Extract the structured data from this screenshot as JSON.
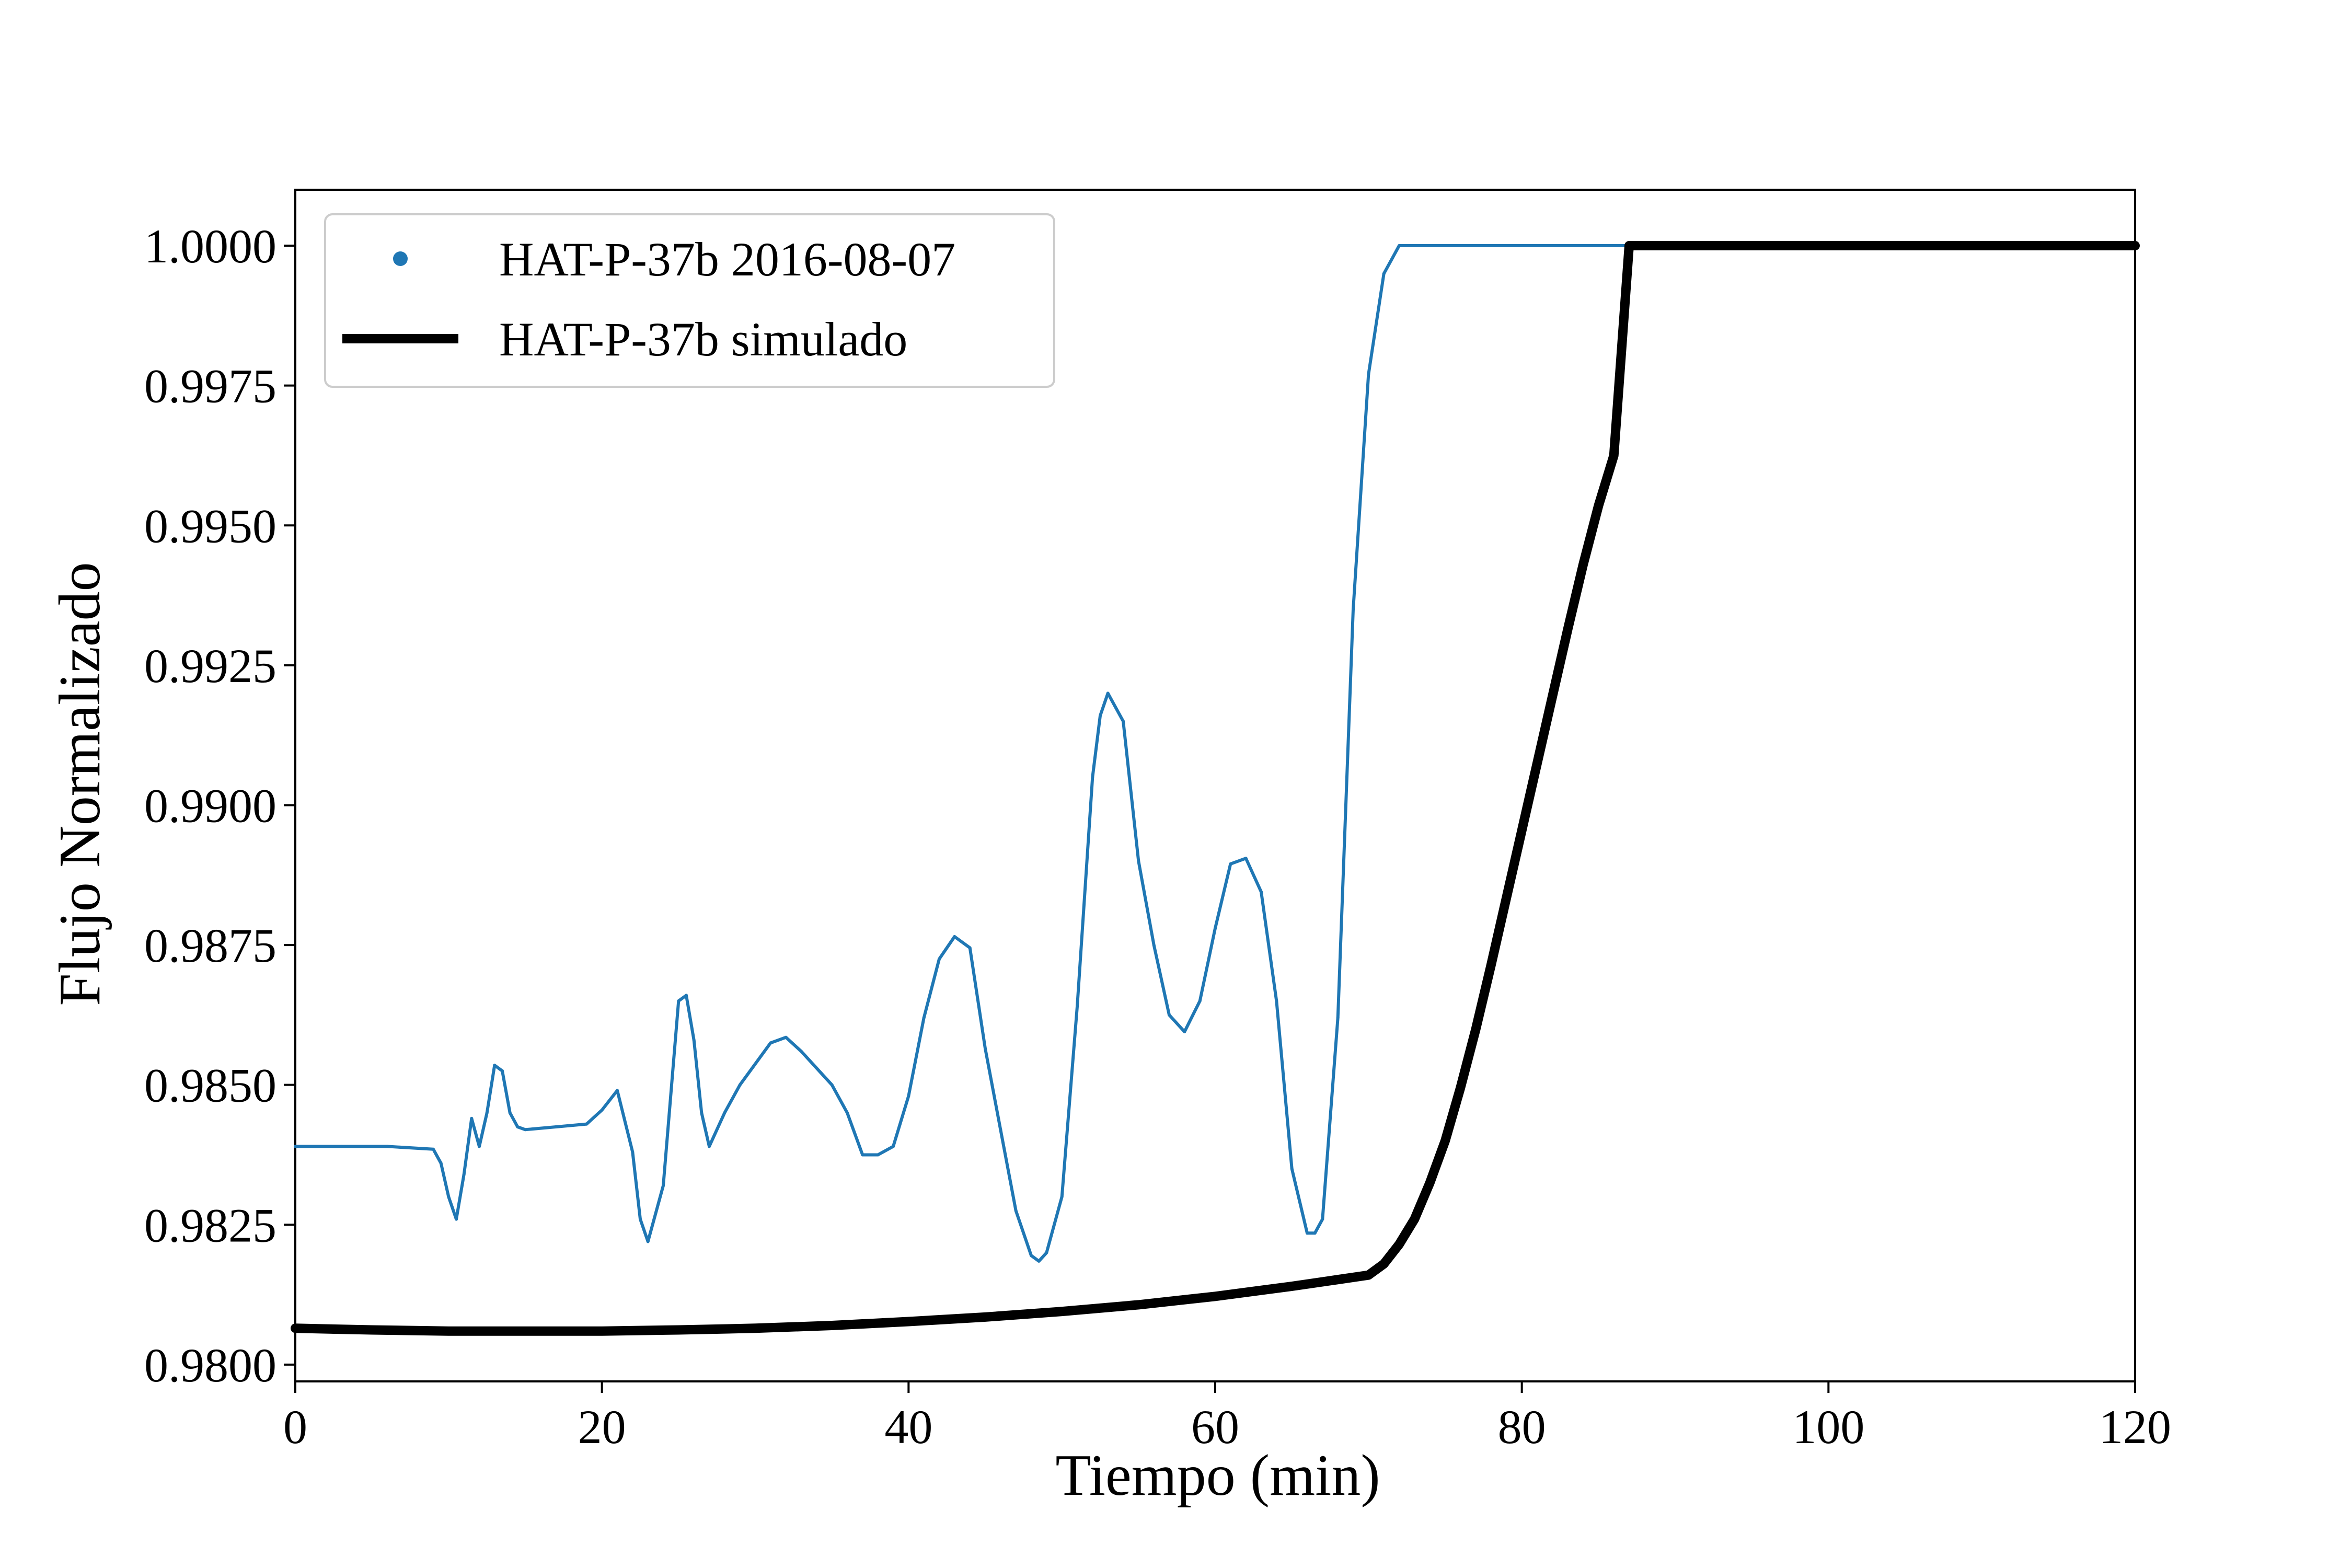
{
  "chart_data": {
    "type": "line",
    "title": "",
    "xlabel": "Tiempo (min)",
    "ylabel": "Flujo Normalizado",
    "xlim": [
      0,
      120
    ],
    "ylim": [
      0.9797,
      1.001
    ],
    "xticks": [
      0,
      20,
      40,
      60,
      80,
      100,
      120
    ],
    "xtick_labels": [
      "0",
      "20",
      "40",
      "60",
      "80",
      "100",
      "120"
    ],
    "yticks": [
      0.98,
      0.9825,
      0.985,
      0.9875,
      0.99,
      0.9925,
      0.995,
      0.9975,
      1.0
    ],
    "ytick_labels": [
      "0.9800",
      "0.9825",
      "0.9850",
      "0.9875",
      "0.9900",
      "0.9925",
      "0.9950",
      "0.9975",
      "1.0000"
    ],
    "grid": false,
    "legend_position": "top-left",
    "series": [
      {
        "name": "HAT-P-37b 2016-08-07",
        "style": "dots",
        "color": "#1f77b4",
        "x": [
          0,
          3,
          6,
          9,
          9.5,
          10,
          10.5,
          11,
          11.5,
          12,
          12.5,
          13,
          13.5,
          14,
          14.5,
          15,
          17,
          19,
          20,
          21,
          22,
          22.5,
          23,
          24,
          25,
          25.5,
          26,
          26.5,
          27,
          28,
          29,
          31,
          32,
          33,
          35,
          36,
          37,
          38,
          39,
          40,
          41,
          42,
          43,
          44,
          45,
          46,
          47,
          48,
          48.5,
          49,
          50,
          51,
          52,
          52.5,
          53,
          54,
          55,
          56,
          57,
          58,
          59,
          60,
          61,
          62,
          63,
          64,
          65,
          66,
          66.5,
          67,
          68,
          69,
          70,
          71,
          72,
          72.7,
          80,
          87,
          95,
          105,
          120
        ],
        "y": [
          0.9839,
          0.9839,
          0.9839,
          0.98385,
          0.9836,
          0.983,
          0.9826,
          0.9834,
          0.9844,
          0.9839,
          0.9845,
          0.98535,
          0.98525,
          0.9845,
          0.98425,
          0.9842,
          0.98425,
          0.9843,
          0.98455,
          0.9849,
          0.9838,
          0.9826,
          0.9822,
          0.9832,
          0.9865,
          0.9866,
          0.9858,
          0.9845,
          0.9839,
          0.9845,
          0.985,
          0.98575,
          0.98585,
          0.9856,
          0.985,
          0.9845,
          0.98375,
          0.98375,
          0.9839,
          0.9848,
          0.9862,
          0.98725,
          0.98765,
          0.98745,
          0.98565,
          0.9842,
          0.98275,
          0.98195,
          0.98185,
          0.982,
          0.983,
          0.9864,
          0.9905,
          0.9916,
          0.992,
          0.9915,
          0.989,
          0.9875,
          0.98625,
          0.98595,
          0.9865,
          0.9878,
          0.98895,
          0.98905,
          0.98845,
          0.9865,
          0.9835,
          0.98235,
          0.98235,
          0.9826,
          0.9862,
          0.9935,
          0.9977,
          0.9995,
          1.0,
          1.0,
          1.0,
          1.0,
          1.0,
          1.0,
          1.0
        ]
      },
      {
        "name": "HAT-P-37b simulado",
        "style": "line",
        "color": "#000000",
        "x": [
          0,
          5,
          10,
          15,
          20,
          25,
          30,
          35,
          40,
          45,
          50,
          55,
          60,
          65,
          68,
          70,
          71,
          72,
          73,
          74,
          75,
          76,
          77,
          78,
          79,
          80,
          81,
          82,
          83,
          84,
          85,
          86,
          87,
          90,
          100,
          110,
          120
        ],
        "y": [
          0.98065,
          0.98062,
          0.9806,
          0.9806,
          0.9806,
          0.98062,
          0.98065,
          0.9807,
          0.98077,
          0.98085,
          0.98095,
          0.98107,
          0.98122,
          0.9814,
          0.98152,
          0.9816,
          0.9818,
          0.98215,
          0.9826,
          0.98325,
          0.984,
          0.98495,
          0.986,
          0.98715,
          0.98835,
          0.98955,
          0.99075,
          0.99195,
          0.99315,
          0.9943,
          0.99535,
          0.99625,
          1.0,
          1.0,
          1.0,
          1.0,
          1.0
        ]
      }
    ]
  }
}
